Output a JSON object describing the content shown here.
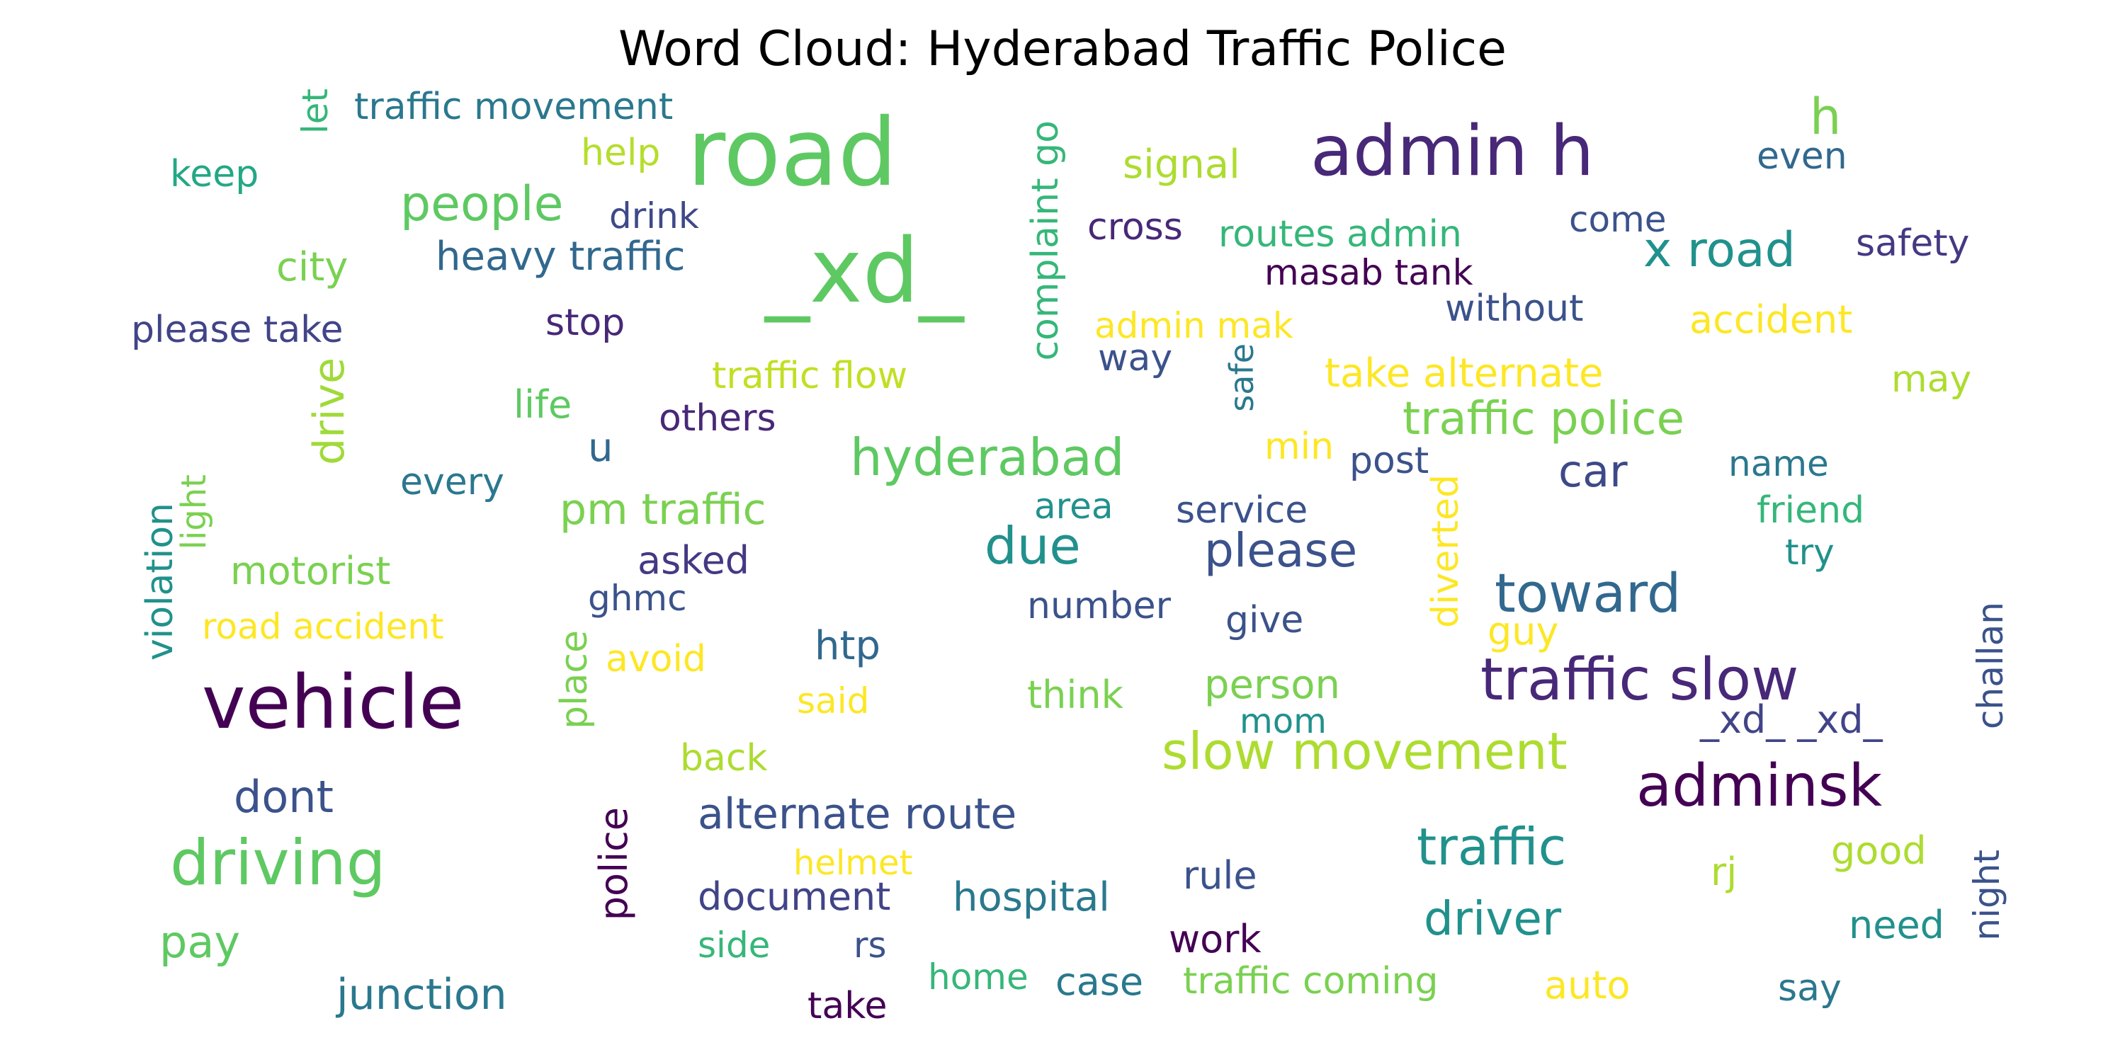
{
  "title": "Word Cloud: Hyderabad Traffic Police",
  "palette": "viridis",
  "words": [
    {
      "text": "road",
      "color": "#5ec962",
      "vertical": false
    },
    {
      "text": "_xd_",
      "color": "#5ec962",
      "vertical": false
    },
    {
      "text": "vehicle",
      "color": "#440154",
      "vertical": false
    },
    {
      "text": "admin h",
      "color": "#482878",
      "vertical": false
    },
    {
      "text": "driving",
      "color": "#5ec962",
      "vertical": false
    },
    {
      "text": "traffic slow",
      "color": "#482878",
      "vertical": false
    },
    {
      "text": "adminsk",
      "color": "#440154",
      "vertical": false
    },
    {
      "text": "slow movement",
      "color": "#addc30",
      "vertical": false
    },
    {
      "text": "toward",
      "color": "#31688e",
      "vertical": false
    },
    {
      "text": "hyderabad",
      "color": "#5ec962",
      "vertical": false
    },
    {
      "text": "traffic",
      "color": "#21918c",
      "vertical": false
    },
    {
      "text": "x road",
      "color": "#21918c",
      "vertical": false
    },
    {
      "text": "due",
      "color": "#21918c",
      "vertical": false
    },
    {
      "text": "people",
      "color": "#5ec962",
      "vertical": false
    },
    {
      "text": "please",
      "color": "#3b528b",
      "vertical": false
    },
    {
      "text": "traffic police",
      "color": "#7ad151",
      "vertical": false
    },
    {
      "text": "driver",
      "color": "#21918c",
      "vertical": false
    },
    {
      "text": "alternate route",
      "color": "#3b528b",
      "vertical": false
    },
    {
      "text": "pm traffic",
      "color": "#7ad151",
      "vertical": false
    },
    {
      "text": "heavy traffic",
      "color": "#31688e",
      "vertical": false
    },
    {
      "text": "dont",
      "color": "#3b528b",
      "vertical": false
    },
    {
      "text": "pay",
      "color": "#5ec962",
      "vertical": false
    },
    {
      "text": "car",
      "color": "#3e4989",
      "vertical": false
    },
    {
      "text": "take alternate",
      "color": "#fde725",
      "vertical": false
    },
    {
      "text": "drive",
      "color": "#a0da39",
      "vertical": true
    },
    {
      "text": "complaint go",
      "color": "#35b779",
      "vertical": true
    },
    {
      "text": "h",
      "color": "#7ad151",
      "vertical": false
    },
    {
      "text": "traffic movement",
      "color": "#2a788e",
      "vertical": false
    },
    {
      "text": "signal",
      "color": "#addc30",
      "vertical": false
    },
    {
      "text": "city",
      "color": "#7ad151",
      "vertical": false
    },
    {
      "text": "junction",
      "color": "#2a788e",
      "vertical": false
    },
    {
      "text": "traffic flow",
      "color": "#c2df23",
      "vertical": false
    },
    {
      "text": "person",
      "color": "#7ad151",
      "vertical": false
    },
    {
      "text": "safety",
      "color": "#443983",
      "vertical": false
    },
    {
      "text": "please take",
      "color": "#414487",
      "vertical": false
    },
    {
      "text": "road accident",
      "color": "#fde725",
      "vertical": false
    },
    {
      "text": "accident",
      "color": "#fde725",
      "vertical": false
    },
    {
      "text": "work",
      "color": "#440154",
      "vertical": false
    },
    {
      "text": "case",
      "color": "#2a788e",
      "vertical": false
    },
    {
      "text": "traffic coming",
      "color": "#7ad151",
      "vertical": false
    },
    {
      "text": "hospital",
      "color": "#2a788e",
      "vertical": false
    },
    {
      "text": "document",
      "color": "#414487",
      "vertical": false
    },
    {
      "text": "need",
      "color": "#21918c",
      "vertical": false
    },
    {
      "text": "motorist",
      "color": "#7ad151",
      "vertical": false
    },
    {
      "text": "htp",
      "color": "#31688e",
      "vertical": false
    },
    {
      "text": "cross",
      "color": "#482878",
      "vertical": false
    },
    {
      "text": "routes admin",
      "color": "#35b779",
      "vertical": false
    },
    {
      "text": "masab tank",
      "color": "#440154",
      "vertical": false
    },
    {
      "text": "admin mak",
      "color": "#fde725",
      "vertical": false
    },
    {
      "text": "_xd_ _xd_",
      "color": "#414487",
      "vertical": false
    },
    {
      "text": "life",
      "color": "#5ec962",
      "vertical": false
    },
    {
      "text": "others",
      "color": "#482878",
      "vertical": false
    },
    {
      "text": "asked",
      "color": "#443983",
      "vertical": false
    },
    {
      "text": "ghmc",
      "color": "#3b528b",
      "vertical": false
    },
    {
      "text": "avoid",
      "color": "#fde725",
      "vertical": false
    },
    {
      "text": "said",
      "color": "#fde725",
      "vertical": false
    },
    {
      "text": "back",
      "color": "#addc30",
      "vertical": false
    },
    {
      "text": "helmet",
      "color": "#fde725",
      "vertical": false
    },
    {
      "text": "side",
      "color": "#35b779",
      "vertical": false
    },
    {
      "text": "rs",
      "color": "#3b528b",
      "vertical": false
    },
    {
      "text": "home",
      "color": "#35b779",
      "vertical": false
    },
    {
      "text": "take",
      "color": "#440154",
      "vertical": false
    },
    {
      "text": "think",
      "color": "#7ad151",
      "vertical": false
    },
    {
      "text": "mom",
      "color": "#21918c",
      "vertical": false
    },
    {
      "text": "give",
      "color": "#3b528b",
      "vertical": false
    },
    {
      "text": "number",
      "color": "#3b528b",
      "vertical": false
    },
    {
      "text": "service",
      "color": "#3b528b",
      "vertical": false
    },
    {
      "text": "area",
      "color": "#21918c",
      "vertical": false
    },
    {
      "text": "min",
      "color": "#fde725",
      "vertical": false
    },
    {
      "text": "post",
      "color": "#3b528b",
      "vertical": false
    },
    {
      "text": "name",
      "color": "#2a788e",
      "vertical": false
    },
    {
      "text": "friend",
      "color": "#35b779",
      "vertical": false
    },
    {
      "text": "try",
      "color": "#21918c",
      "vertical": false
    },
    {
      "text": "guy",
      "color": "#fde725",
      "vertical": false
    },
    {
      "text": "rule",
      "color": "#3b528b",
      "vertical": false
    },
    {
      "text": "good",
      "color": "#addc30",
      "vertical": false
    },
    {
      "text": "rj",
      "color": "#addc30",
      "vertical": false
    },
    {
      "text": "say",
      "color": "#2a788e",
      "vertical": false
    },
    {
      "text": "auto",
      "color": "#fde725",
      "vertical": false
    },
    {
      "text": "keep",
      "color": "#22a884",
      "vertical": false
    },
    {
      "text": "help",
      "color": "#b5de2b",
      "vertical": false
    },
    {
      "text": "drink",
      "color": "#3e4989",
      "vertical": false
    },
    {
      "text": "stop",
      "color": "#482878",
      "vertical": false
    },
    {
      "text": "every",
      "color": "#2a788e",
      "vertical": false
    },
    {
      "text": "u",
      "color": "#31688e",
      "vertical": false
    },
    {
      "text": "come",
      "color": "#3b528b",
      "vertical": false
    },
    {
      "text": "even",
      "color": "#31688e",
      "vertical": false
    },
    {
      "text": "without",
      "color": "#3b528b",
      "vertical": false
    },
    {
      "text": "way",
      "color": "#3b528b",
      "vertical": false
    },
    {
      "text": "may",
      "color": "#addc30",
      "vertical": false
    },
    {
      "text": "let",
      "color": "#35b779",
      "vertical": true
    },
    {
      "text": "light",
      "color": "#7ad151",
      "vertical": true
    },
    {
      "text": "violation",
      "color": "#21918c",
      "vertical": true
    },
    {
      "text": "place",
      "color": "#7ad151",
      "vertical": true
    },
    {
      "text": "police",
      "color": "#440154",
      "vertical": true
    },
    {
      "text": "safe",
      "color": "#2a788e",
      "vertical": true
    },
    {
      "text": "diverted",
      "color": "#fde725",
      "vertical": true
    },
    {
      "text": "challan",
      "color": "#3b528b",
      "vertical": true
    },
    {
      "text": "night",
      "color": "#3b528b",
      "vertical": true
    }
  ]
}
